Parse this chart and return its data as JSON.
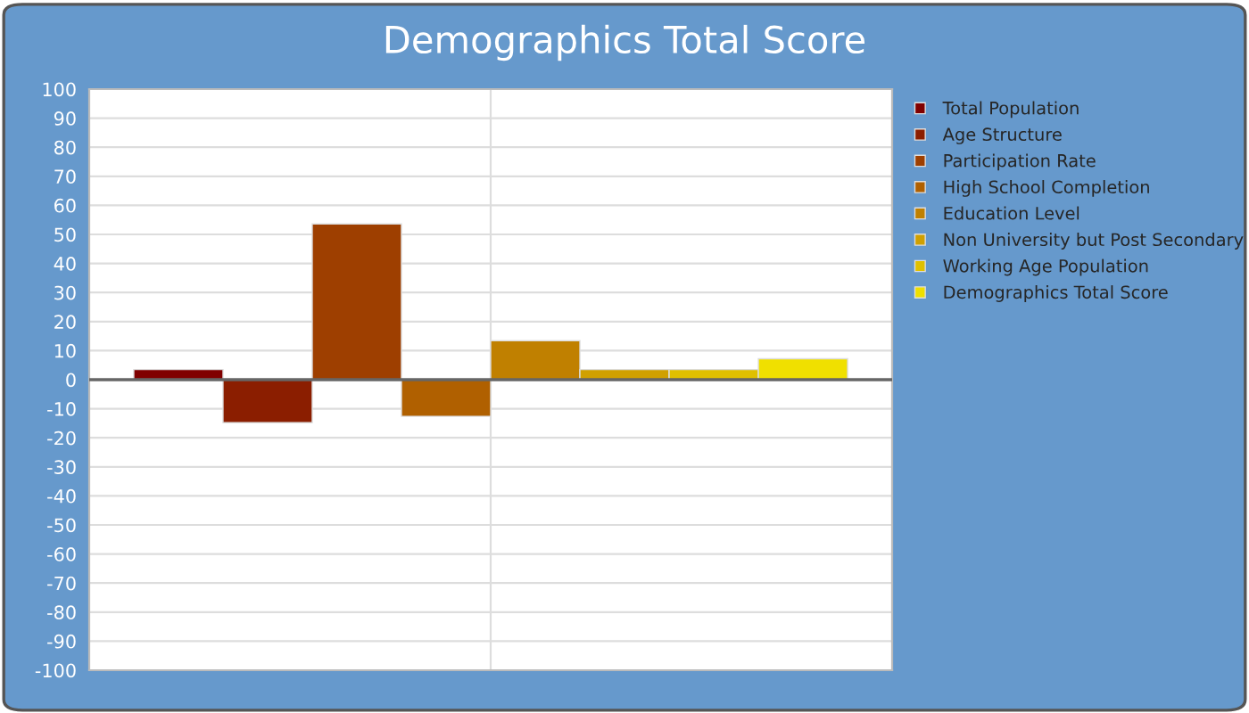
{
  "chart_data": {
    "type": "bar",
    "title": "Demographics Total Score",
    "categories": [
      null
    ],
    "series": [
      {
        "name": "Total Population",
        "color": "#800000",
        "values": [
          3.5
        ]
      },
      {
        "name": "Age Structure",
        "color": "#8b1e00",
        "values": [
          -14.8
        ]
      },
      {
        "name": "Participation Rate",
        "color": "#9e3f00",
        "values": [
          53.6
        ]
      },
      {
        "name": "High School Completion",
        "color": "#b06000",
        "values": [
          -12.6
        ]
      },
      {
        "name": "Education Level",
        "color": "#c08000",
        "values": [
          13.4
        ]
      },
      {
        "name": "Non University but Post Secondary",
        "color": "#d0a000",
        "values": [
          3.5
        ]
      },
      {
        "name": "Working Age Population",
        "color": "#e0c000",
        "values": [
          3.5
        ]
      },
      {
        "name": "Demographics Total Score",
        "color": "#f0e000",
        "values": [
          7.2
        ]
      }
    ],
    "ylim": [
      -100,
      100
    ],
    "yticks": [
      -100,
      -90,
      -80,
      -70,
      -60,
      -50,
      -40,
      -30,
      -20,
      -10,
      0,
      10,
      20,
      30,
      40,
      50,
      60,
      70,
      80,
      90,
      100
    ],
    "grid": true,
    "legend": "right"
  }
}
